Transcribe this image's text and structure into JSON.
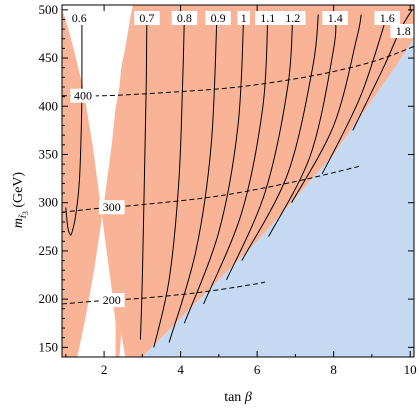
{
  "chart_data": {
    "type": "contour",
    "xlabel_base": "tan ",
    "xlabel_symbol": "β",
    "ylabel_italic": "m",
    "ylabel_sub": "t̃",
    "ylabel_sub_index": "3",
    "ylabel_unit": " (GeV)",
    "xlim": [
      0.9,
      10.1
    ],
    "ylim": [
      140,
      505
    ],
    "x_ticks": [
      2,
      4,
      6,
      8,
      10
    ],
    "y_ticks": [
      150,
      200,
      250,
      300,
      350,
      400,
      450,
      500
    ],
    "colors": {
      "excluded_orange": "#f9b497",
      "blue_region": "#c5daf2",
      "solid_line": "#000000",
      "dashed_line": "#000000",
      "frame": "#000000"
    },
    "blue_region": [
      [
        3.0,
        140
      ],
      [
        10.1,
        140
      ],
      [
        10.1,
        470
      ],
      [
        9.6,
        440
      ],
      [
        8.0,
        350
      ],
      [
        6.0,
        260
      ],
      [
        4.5,
        200
      ],
      [
        3.0,
        140
      ]
    ],
    "dashed_contours": [
      {
        "label": "200",
        "label_x": 2.2,
        "points": [
          [
            0.9,
            195
          ],
          [
            1.8,
            198
          ],
          [
            3,
            201
          ],
          [
            4.5,
            207
          ],
          [
            6,
            216
          ],
          [
            6.2,
            218
          ]
        ]
      },
      {
        "label": "300",
        "label_x": 2.2,
        "points": [
          [
            0.9,
            290
          ],
          [
            1.8,
            294
          ],
          [
            3,
            298
          ],
          [
            5,
            307
          ],
          [
            7,
            322
          ],
          [
            8.7,
            338
          ]
        ]
      },
      {
        "label": "400",
        "label_x": 1.45,
        "points": [
          [
            0.9,
            411
          ],
          [
            2,
            411
          ],
          [
            3.5,
            414
          ],
          [
            5.5,
            420
          ],
          [
            7.5,
            432
          ],
          [
            9,
            446
          ],
          [
            10.1,
            462
          ]
        ]
      }
    ],
    "top_labels": [
      "0.6",
      "0.7",
      "0.8",
      "0.9",
      "1",
      "1.1",
      "1.2",
      "1.4",
      "1.6"
    ],
    "top_label_x": [
      1.35,
      3.12,
      4.1,
      4.98,
      5.65,
      6.28,
      6.93,
      8.04,
      9.4
    ],
    "side_labels": [
      {
        "label": "1.8",
        "x": 9.82,
        "y": 478
      }
    ],
    "solid_curves": [
      {
        "label": "0.6",
        "points": [
          [
            1.42,
            495
          ],
          [
            1.42,
            420
          ],
          [
            1.4,
            370
          ],
          [
            1.35,
            320
          ],
          [
            1.25,
            285
          ],
          [
            1.15,
            268
          ],
          [
            1.1,
            268
          ],
          [
            1.05,
            275
          ],
          [
            1.0,
            295
          ]
        ]
      },
      {
        "label": "0.7",
        "points": [
          [
            2.95,
            158
          ],
          [
            3.0,
            220
          ],
          [
            3.05,
            320
          ],
          [
            3.1,
            420
          ],
          [
            3.12,
            495
          ]
        ]
      },
      {
        "label": "",
        "points": [
          [
            3.3,
            150
          ],
          [
            3.7,
            220
          ],
          [
            3.95,
            320
          ],
          [
            4.05,
            420
          ],
          [
            4.1,
            495
          ]
        ]
      },
      {
        "label": "",
        "points": [
          [
            3.7,
            155
          ],
          [
            4.4,
            250
          ],
          [
            4.8,
            360
          ],
          [
            4.95,
            495
          ]
        ]
      },
      {
        "label": "",
        "points": [
          [
            4.1,
            175
          ],
          [
            5.0,
            270
          ],
          [
            5.5,
            380
          ],
          [
            5.65,
            495
          ]
        ]
      },
      {
        "label": "",
        "points": [
          [
            4.6,
            195
          ],
          [
            5.6,
            290
          ],
          [
            6.15,
            400
          ],
          [
            6.28,
            495
          ]
        ]
      },
      {
        "label": "",
        "points": [
          [
            5.2,
            220
          ],
          [
            6.2,
            310
          ],
          [
            6.8,
            420
          ],
          [
            6.93,
            495
          ]
        ]
      },
      {
        "label": "",
        "points": [
          [
            5.6,
            240
          ],
          [
            6.8,
            330
          ],
          [
            7.45,
            440
          ],
          [
            7.6,
            495
          ]
        ]
      },
      {
        "label": "",
        "points": [
          [
            6.3,
            265
          ],
          [
            7.4,
            350
          ],
          [
            8.0,
            460
          ],
          [
            8.04,
            495
          ]
        ]
      },
      {
        "label": "",
        "points": [
          [
            6.9,
            300
          ],
          [
            8.0,
            380
          ],
          [
            8.6,
            470
          ],
          [
            8.72,
            495
          ]
        ]
      },
      {
        "label": "",
        "points": [
          [
            7.7,
            330
          ],
          [
            8.7,
            410
          ],
          [
            9.4,
            495
          ]
        ]
      },
      {
        "label": "",
        "points": [
          [
            8.5,
            375
          ],
          [
            9.3,
            440
          ],
          [
            9.75,
            480
          ],
          [
            10.05,
            500
          ]
        ]
      }
    ],
    "orange_region": [
      [
        0.9,
        140
      ],
      [
        1.3,
        140
      ],
      [
        1.5,
        178
      ],
      [
        1.75,
        232
      ],
      [
        2.0,
        300
      ],
      [
        2.2,
        360
      ],
      [
        2.3,
        398
      ],
      [
        2.4,
        420
      ],
      [
        2.45,
        440
      ],
      [
        2.55,
        460
      ],
      [
        2.7,
        495
      ],
      [
        2.75,
        505
      ],
      [
        3.15,
        505
      ],
      [
        5.0,
        505
      ],
      [
        10.1,
        505
      ],
      [
        10.1,
        470
      ],
      [
        9.6,
        440
      ],
      [
        8.0,
        350
      ],
      [
        6.0,
        260
      ],
      [
        4.5,
        200
      ],
      [
        3.0,
        140
      ],
      [
        2.55,
        140
      ],
      [
        2.45,
        165
      ],
      [
        2.4,
        140
      ],
      [
        2.3,
        140
      ],
      [
        2.3,
        175
      ],
      [
        2.2,
        210
      ],
      [
        2.1,
        240
      ],
      [
        1.9,
        300
      ],
      [
        1.7,
        360
      ],
      [
        1.45,
        420
      ],
      [
        1.2,
        460
      ],
      [
        1.0,
        490
      ],
      [
        0.9,
        500
      ]
    ]
  }
}
